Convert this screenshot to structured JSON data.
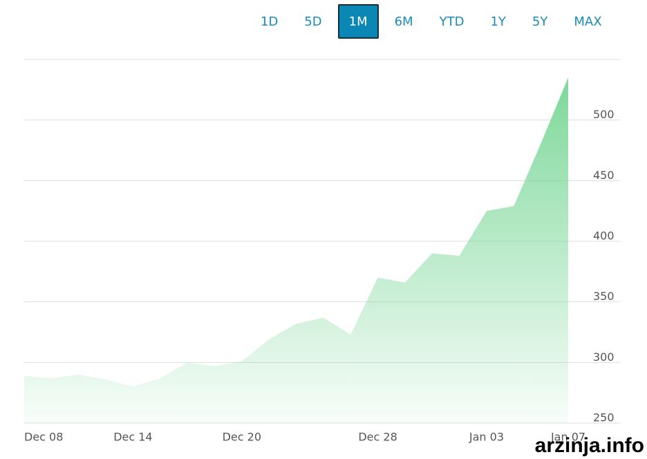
{
  "chart_data": {
    "type": "area",
    "range_buttons": {
      "options": [
        "1D",
        "5D",
        "1M",
        "6M",
        "YTD",
        "1Y",
        "5Y",
        "MAX"
      ],
      "selected": 2
    },
    "categories": [
      "Dec 08",
      null,
      null,
      null,
      "Dec 14",
      null,
      null,
      null,
      "Dec 20",
      null,
      null,
      null,
      null,
      "Dec 28",
      null,
      null,
      null,
      "Jan 03",
      null,
      null,
      "Jan 07"
    ],
    "values": [
      289,
      287,
      290,
      286,
      280,
      287,
      300,
      297,
      301,
      319,
      332,
      337,
      323,
      370,
      366,
      390,
      388,
      425,
      429,
      481,
      535
    ],
    "color": "#7dd89a",
    "ylim": [
      250,
      550
    ],
    "yticks": [
      250,
      300,
      350,
      400,
      450,
      500
    ],
    "grid": true,
    "watermark": "arzinja.info"
  }
}
